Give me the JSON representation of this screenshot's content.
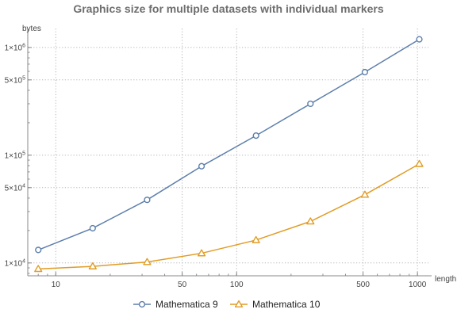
{
  "chart_data": {
    "type": "line",
    "title": "Graphics size for multiple datasets with individual markers",
    "xlabel": "length",
    "ylabel": "bytes",
    "x_scale": "log",
    "y_scale": "log",
    "xlim": [
      7,
      1150
    ],
    "ylim": [
      7600,
      1400000
    ],
    "x_ticks": [
      {
        "value": 10,
        "label": "10"
      },
      {
        "value": 50,
        "label": "50"
      },
      {
        "value": 100,
        "label": "100"
      },
      {
        "value": 500,
        "label": "500"
      },
      {
        "value": 1000,
        "label": "1000"
      }
    ],
    "y_ticks": [
      {
        "value": 10000,
        "mant": "1",
        "exp": "4"
      },
      {
        "value": 50000,
        "mant": "5",
        "exp": "4"
      },
      {
        "value": 100000,
        "mant": "1",
        "exp": "5"
      },
      {
        "value": 500000,
        "mant": "5",
        "exp": "5"
      },
      {
        "value": 1000000,
        "mant": "1",
        "exp": "6"
      }
    ],
    "x_grid": [
      10,
      50,
      100,
      500,
      1000
    ],
    "y_grid": [
      10000,
      50000,
      100000,
      500000,
      1000000
    ],
    "grid": true,
    "legend": "bottom",
    "series": [
      {
        "name": "Mathematica 9",
        "color": "#5d7fac",
        "marker": "circle",
        "points": [
          {
            "x": 8,
            "y": 13200
          },
          {
            "x": 16,
            "y": 21000
          },
          {
            "x": 32,
            "y": 38500
          },
          {
            "x": 64,
            "y": 79000
          },
          {
            "x": 128,
            "y": 152000
          },
          {
            "x": 256,
            "y": 300000
          },
          {
            "x": 512,
            "y": 590000
          },
          {
            "x": 1024,
            "y": 1190000
          }
        ]
      },
      {
        "name": "Mathematica 10",
        "color": "#e19c24",
        "marker": "triangle",
        "points": [
          {
            "x": 8,
            "y": 8800
          },
          {
            "x": 16,
            "y": 9300
          },
          {
            "x": 32,
            "y": 10200
          },
          {
            "x": 64,
            "y": 12300
          },
          {
            "x": 128,
            "y": 16300
          },
          {
            "x": 256,
            "y": 24300
          },
          {
            "x": 512,
            "y": 43000
          },
          {
            "x": 1024,
            "y": 83000
          }
        ]
      }
    ]
  }
}
